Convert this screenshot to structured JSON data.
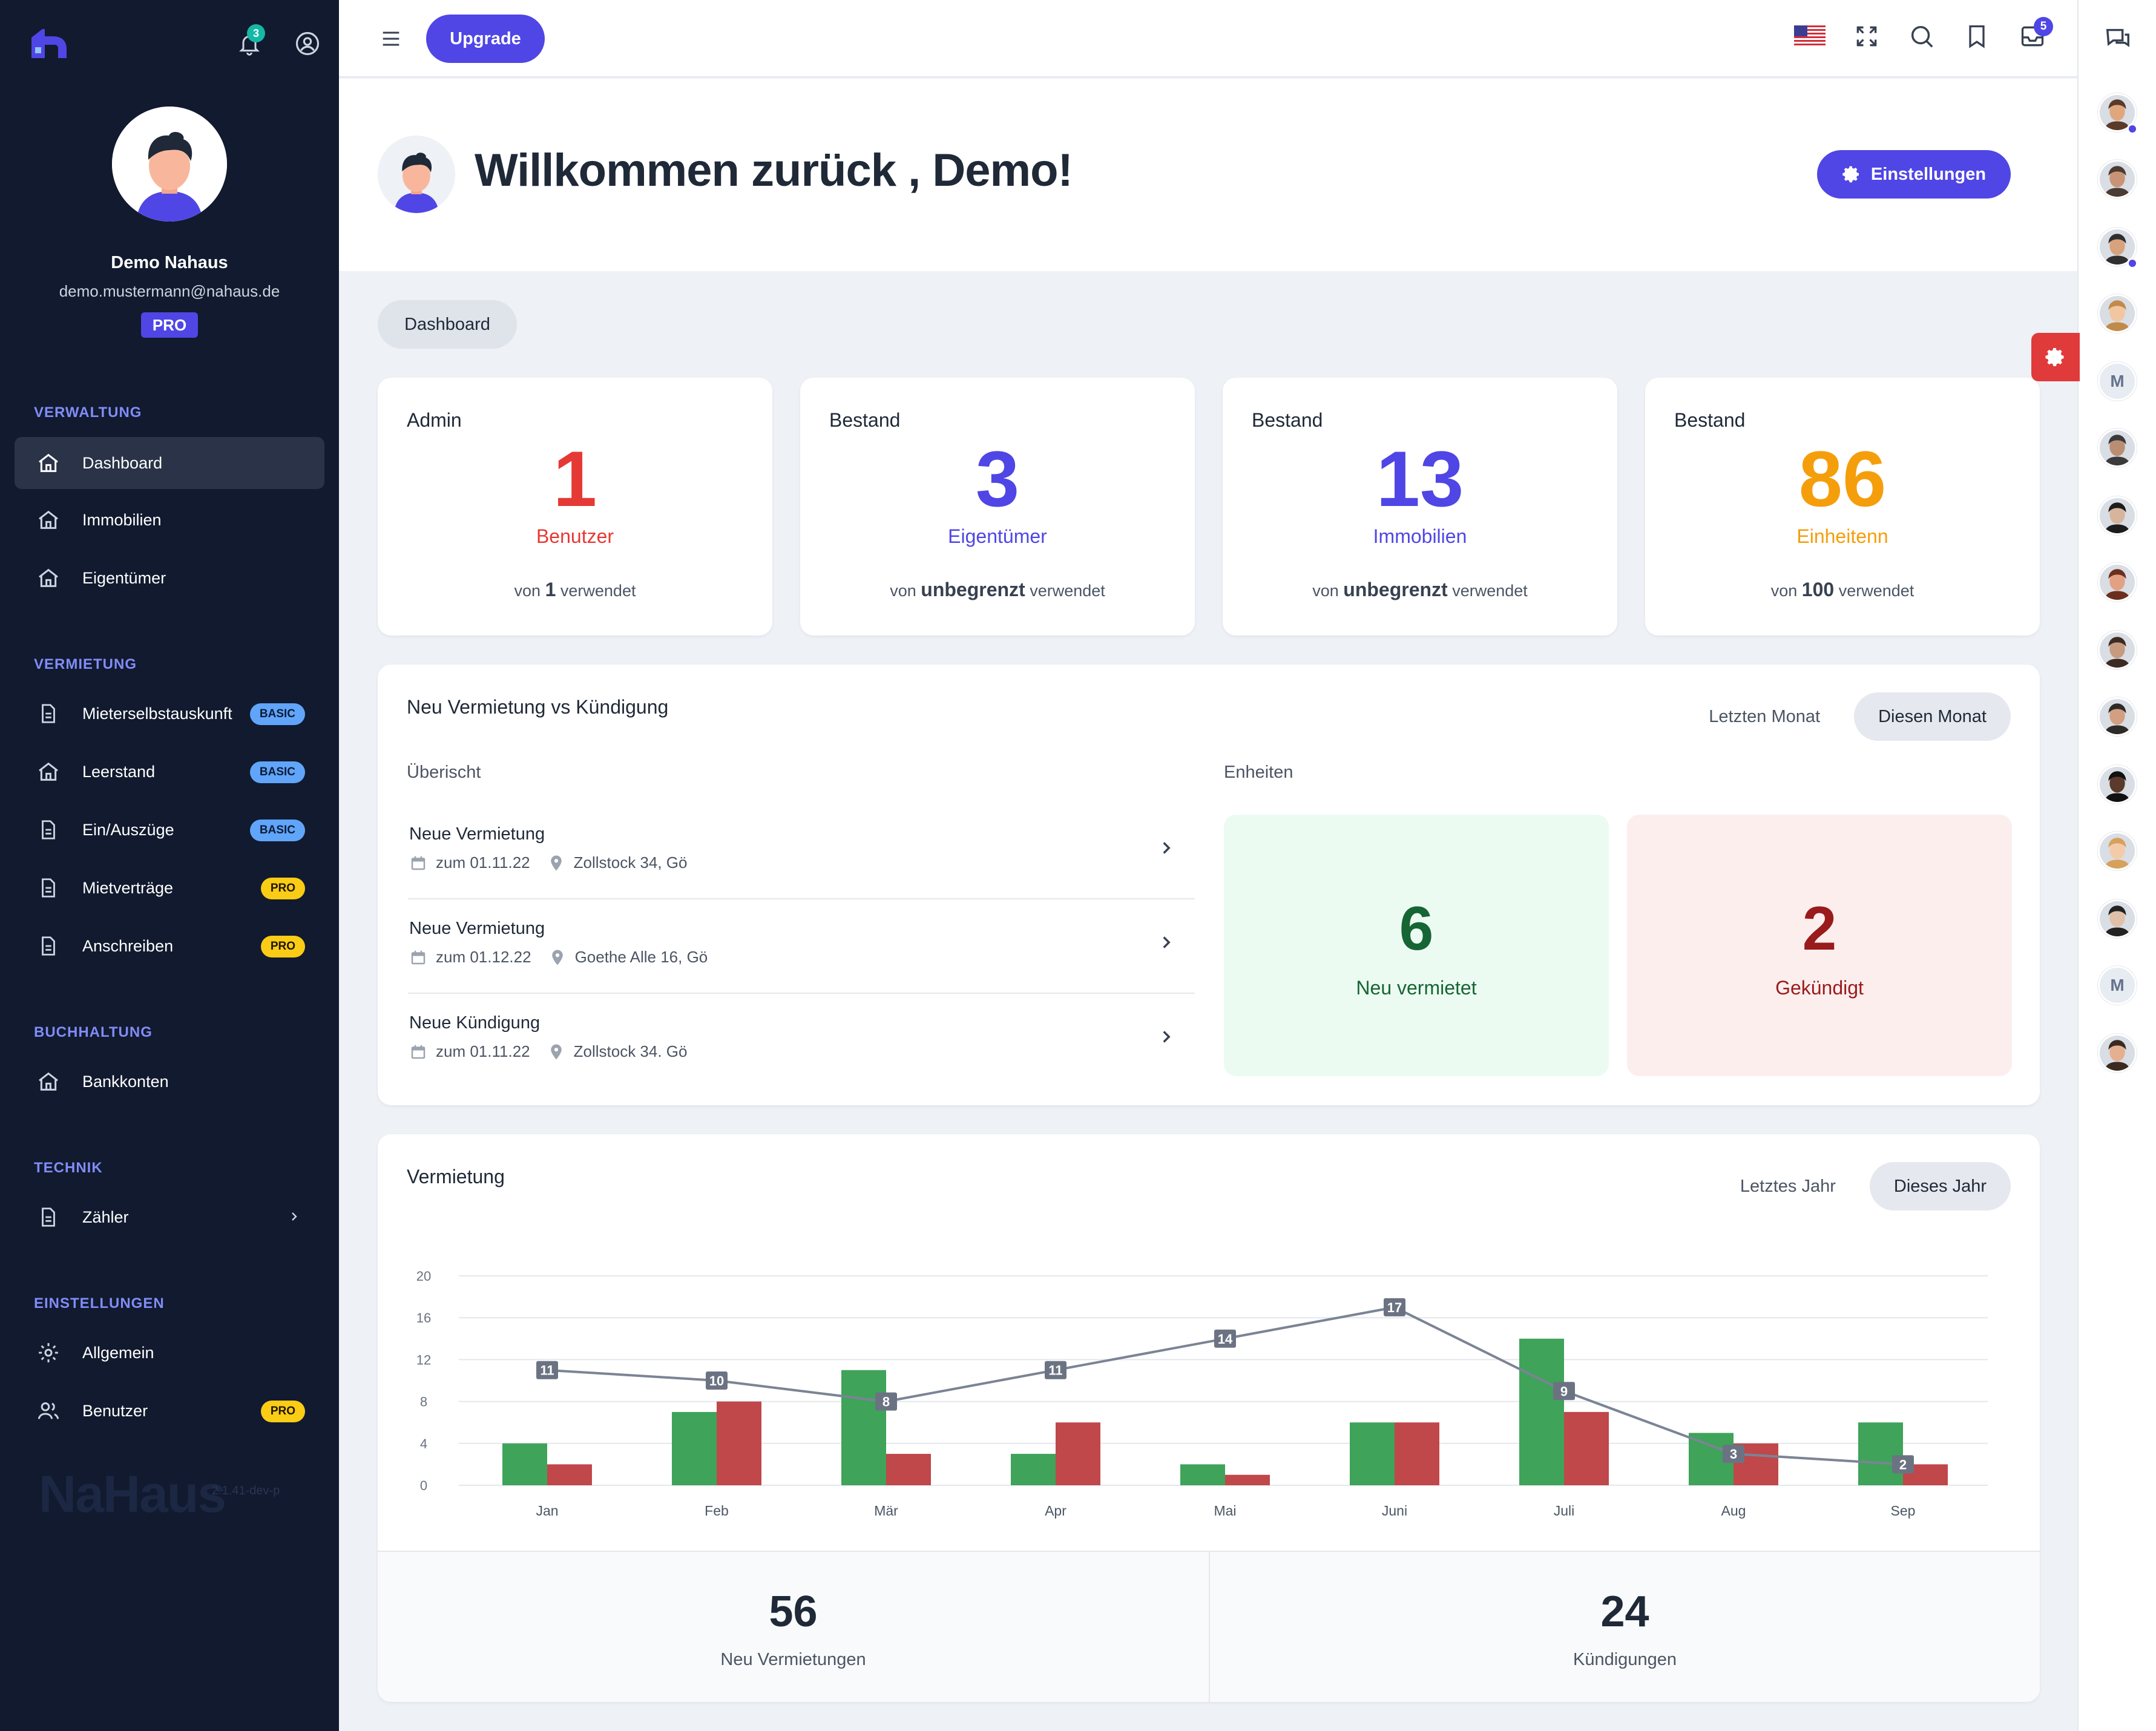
{
  "sidebar": {
    "user": {
      "name": "Demo Nahaus",
      "email": "demo.mustermann@nahaus.de",
      "plan": "PRO"
    },
    "notifications_count": "3",
    "sections": [
      {
        "title": "VERWALTUNG"
      },
      {
        "title": "VERMIETUNG"
      },
      {
        "title": "BUCHHALTUNG"
      },
      {
        "title": "TECHNIK"
      },
      {
        "title": "EINSTELLUNGEN"
      }
    ],
    "items": {
      "dashboard": "Dashboard",
      "immobilien": "Immobilien",
      "eigentuemer": "Eigentümer",
      "mieterselbstauskunft": "Mieterselbstauskunft",
      "leerstand": "Leerstand",
      "einauszuege": "Ein/Auszüge",
      "mietvertraege": "Mietverträge",
      "anschreiben": "Anschreiben",
      "bankkonten": "Bankkonten",
      "zaehler": "Zähler",
      "allgemein": "Allgemein",
      "benutzer": "Benutzer"
    },
    "badges": {
      "basic": "BASIC",
      "pro": "PRO"
    },
    "watermark": "NaHaus",
    "version": "2.1.41-dev-p"
  },
  "topbar": {
    "upgrade_label": "Upgrade",
    "mail_count": "5"
  },
  "rail": {
    "letter_avatar": "M"
  },
  "welcome": {
    "title": "Willkommen zurück , Demo!",
    "settings_label": "Einstellungen"
  },
  "breadcrumb": "Dashboard",
  "stats": [
    {
      "head": "Admin",
      "value": "1",
      "label": "Benutzer",
      "pre": "von",
      "limit": "1",
      "post": "verwendet",
      "color": "#e53935"
    },
    {
      "head": "Bestand",
      "value": "3",
      "label": "Eigentümer",
      "pre": "von",
      "limit": "unbegrenzt",
      "post": "verwendet",
      "color": "#4f46e5"
    },
    {
      "head": "Bestand",
      "value": "13",
      "label": "Immobilien",
      "pre": "von",
      "limit": "unbegrenzt",
      "post": "verwendet",
      "color": "#4f46e5"
    },
    {
      "head": "Bestand",
      "value": "86",
      "label": "Einheitenn",
      "pre": "von",
      "limit": "100",
      "post": "verwendet",
      "color": "#f59e0b"
    }
  ],
  "rental": {
    "title": "Neu Vermietung vs Kündigung",
    "toggle": {
      "prev": "Letzten Monat",
      "current": "Diesen Monat"
    },
    "overview_label": "Überischt",
    "units_label": "Enheiten",
    "rows": [
      {
        "title": "Neue Vermietung",
        "date": "zum 01.11.22",
        "address": "Zollstock 34, Gö"
      },
      {
        "title": "Neue Vermietung",
        "date": "zum 01.12.22",
        "address": "Goethe Alle 16, Gö"
      },
      {
        "title": "Neue Kündigung",
        "date": "zum 01.11.22",
        "address": "Zollstock 34. Gö"
      }
    ],
    "new_rented": {
      "value": "6",
      "label": "Neu vermietet"
    },
    "terminated": {
      "value": "2",
      "label": "Gekündigt"
    }
  },
  "vermietung": {
    "title": "Vermietung",
    "toggle": {
      "prev": "Letztes Jahr",
      "current": "Dieses Jahr"
    },
    "totals": [
      {
        "value": "56",
        "label": "Neu Vermietungen"
      },
      {
        "value": "24",
        "label": "Kündigungen"
      }
    ]
  },
  "chart_data": {
    "type": "bar",
    "categories": [
      "Jan",
      "Feb",
      "Mär",
      "Apr",
      "Mai",
      "Juni",
      "Juli",
      "Aug",
      "Sep"
    ],
    "series": [
      {
        "kind": "bar",
        "values": [
          4,
          7,
          11,
          3,
          2,
          6,
          14,
          5,
          6
        ],
        "color": "#3fa35a"
      },
      {
        "kind": "bar",
        "values": [
          2,
          8,
          3,
          6,
          1,
          6,
          7,
          4,
          2
        ],
        "color": "#c0474a"
      },
      {
        "kind": "line",
        "values": [
          11,
          10,
          8,
          11,
          14,
          17,
          9,
          3,
          2
        ],
        "color": "#7b8494"
      }
    ],
    "ylim": [
      0,
      20
    ],
    "yticks": [
      0,
      4,
      8,
      12,
      16,
      20
    ],
    "grid": true
  }
}
